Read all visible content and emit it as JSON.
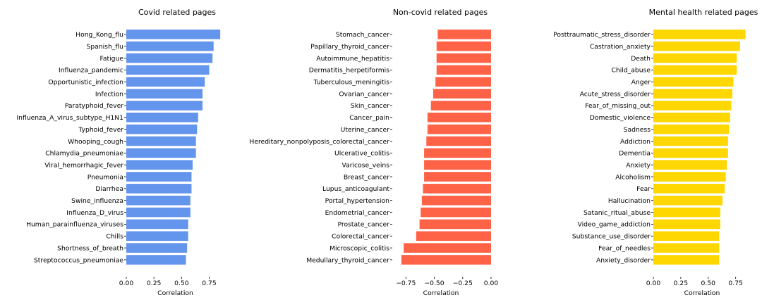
{
  "chart_data": [
    {
      "type": "bar",
      "orientation": "horizontal",
      "title": "Covid related pages",
      "xlabel": "Correlation",
      "ylabel": "",
      "xlim": [
        0,
        0.9
      ],
      "xticks": [
        "0.00",
        "0.25",
        "0.50",
        "0.75"
      ],
      "color": "#6495ED",
      "grid": false,
      "categories": [
        "Hong_Kong_flu",
        "Spanish_flu",
        "Fatigue",
        "Influenza_pandemic",
        "Opportunistic_infection",
        "Infection",
        "Paratyphoid_fever",
        "Influenza_A_virus_subtype_H1N1",
        "Typhoid_fever",
        "Whooping_cough",
        "Chlamydia_pneumoniae",
        "Viral_hemorrhagic_fever",
        "Pneumonia",
        "Diarrhea",
        "Swine_influenza",
        "Influenza_D_virus",
        "Human_parainfluenza_viruses",
        "Chills",
        "Shortness_of_breath",
        "Streptococcus_pneumoniae"
      ],
      "values": [
        0.85,
        0.79,
        0.78,
        0.75,
        0.71,
        0.69,
        0.69,
        0.65,
        0.64,
        0.63,
        0.63,
        0.6,
        0.59,
        0.59,
        0.58,
        0.58,
        0.56,
        0.56,
        0.55,
        0.54
      ]
    },
    {
      "type": "bar",
      "orientation": "horizontal",
      "title": "Non-covid related pages",
      "xlabel": "Correlation",
      "ylabel": "",
      "xlim": [
        -0.87,
        0.0
      ],
      "xticks": [
        "−0.75",
        "−0.50",
        "−0.25",
        "0.00"
      ],
      "color": "#FF6347",
      "grid": false,
      "categories": [
        "Stomach_cancer",
        "Papillary_thyroid_cancer",
        "Autoimmune_hepatitis",
        "Dermatitis_herpetiformis",
        "Tuberculous_meningitis",
        "Ovarian_cancer",
        "Skin_cancer",
        "Cancer_pain",
        "Uterine_cancer",
        "Hereditary_nonpolyposis_colorectal_cancer",
        "Ulcerative_colitis",
        "Varicose_veins",
        "Breast_cancer",
        "Lupus_anticoagulant",
        "Portal_hypertension",
        "Endometrial_cancer",
        "Prostate_cancer",
        "Colorectal_cancer",
        "Microscopic_colitis",
        "Medullary_thyroid_cancer"
      ],
      "values": [
        -0.47,
        -0.48,
        -0.48,
        -0.48,
        -0.49,
        -0.51,
        -0.53,
        -0.56,
        -0.56,
        -0.57,
        -0.59,
        -0.59,
        -0.59,
        -0.6,
        -0.61,
        -0.62,
        -0.63,
        -0.66,
        -0.77,
        -0.79
      ]
    },
    {
      "type": "bar",
      "orientation": "horizontal",
      "title": "Mental health related pages",
      "xlabel": "Correlation",
      "ylabel": "",
      "xlim": [
        0,
        0.9
      ],
      "xticks": [
        "0.00",
        "0.25",
        "0.50",
        "0.75"
      ],
      "color": "#FFD700",
      "grid": false,
      "categories": [
        "Posttraumatic_stress_disorder",
        "Castration_anxiety",
        "Death",
        "Child_abuse",
        "Anger",
        "Acute_stress_disorder",
        "Fear_of_missing_out",
        "Domestic_violence",
        "Sadness",
        "Addiction",
        "Dementia",
        "Anxiety",
        "Alcoholism",
        "Fear",
        "Hallucination",
        "Satanic_ritual_abuse",
        "Video_game_addiction",
        "Substance_use_disorder",
        "Fear_of_needles",
        "Anxiety_disorder"
      ],
      "values": [
        0.84,
        0.79,
        0.76,
        0.76,
        0.73,
        0.72,
        0.71,
        0.7,
        0.69,
        0.68,
        0.68,
        0.67,
        0.66,
        0.65,
        0.63,
        0.61,
        0.61,
        0.6,
        0.6,
        0.6
      ]
    }
  ]
}
